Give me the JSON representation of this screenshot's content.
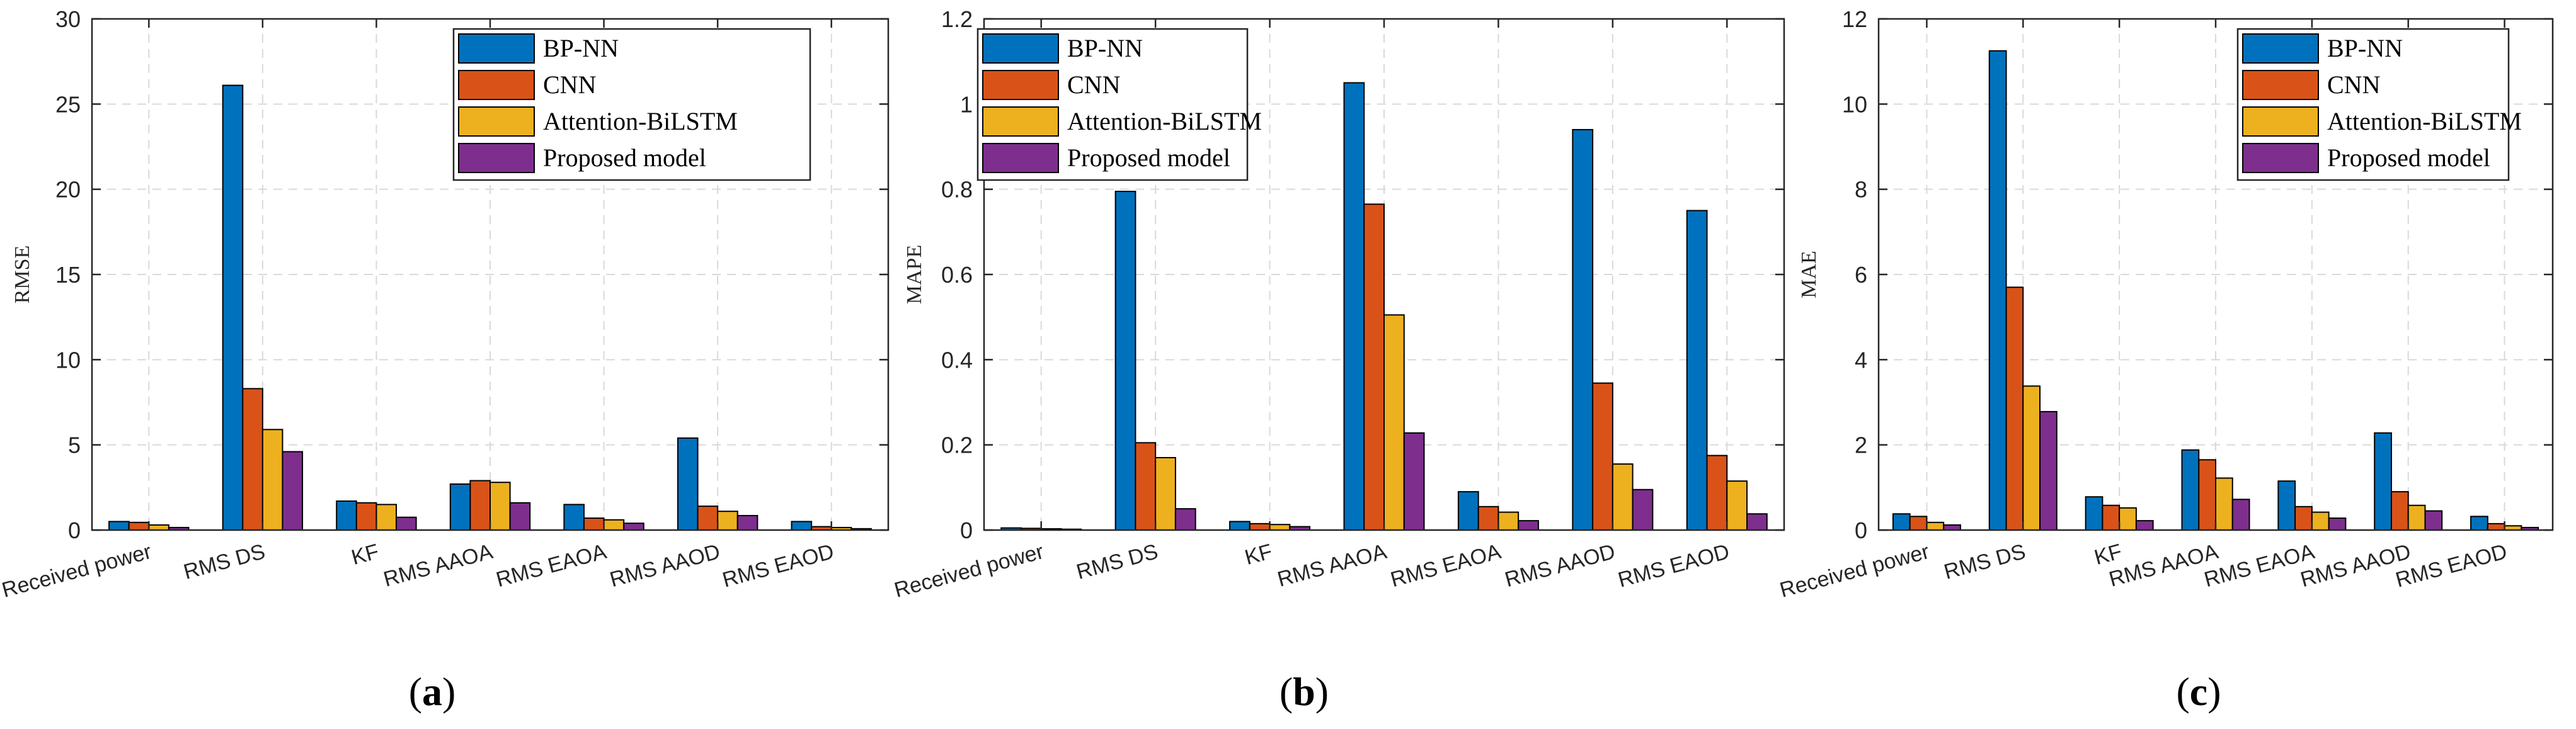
{
  "series_colors": [
    "#0072BD",
    "#D95319",
    "#EDB120",
    "#7E2F8E"
  ],
  "chart_data": [
    {
      "type": "bar",
      "panel_label": "(a)",
      "ylabel": "RMSE",
      "ylim": [
        0,
        30
      ],
      "yticks": [
        0,
        5,
        10,
        15,
        20,
        25,
        30
      ],
      "grid": true,
      "legend_position": "top-right",
      "categories": [
        "Received power",
        "RMS DS",
        "KF",
        "RMS AAOA",
        "RMS EAOA",
        "RMS AAOD",
        "RMS EAOD"
      ],
      "series": [
        {
          "name": "BP-NN",
          "values": [
            0.5,
            26.1,
            1.7,
            2.7,
            1.5,
            5.4,
            0.5
          ]
        },
        {
          "name": "CNN",
          "values": [
            0.45,
            8.3,
            1.6,
            2.9,
            0.7,
            1.4,
            0.2
          ]
        },
        {
          "name": "Attention-BiLSTM",
          "values": [
            0.3,
            5.9,
            1.5,
            2.8,
            0.6,
            1.1,
            0.15
          ]
        },
        {
          "name": "Proposed model",
          "values": [
            0.15,
            4.6,
            0.75,
            1.6,
            0.4,
            0.85,
            0.08
          ]
        }
      ]
    },
    {
      "type": "bar",
      "panel_label": "(b)",
      "ylabel": "MAPE",
      "ylim": [
        0,
        1.2
      ],
      "yticks": [
        0,
        0.2,
        0.4,
        0.6,
        0.8,
        1,
        1.2
      ],
      "grid": true,
      "legend_position": "top-right",
      "categories": [
        "Received power",
        "RMS DS",
        "KF",
        "RMS AAOA",
        "RMS EAOA",
        "RMS AAOD",
        "RMS EAOD"
      ],
      "series": [
        {
          "name": "BP-NN",
          "values": [
            0.005,
            0.795,
            0.02,
            1.05,
            0.09,
            0.94,
            0.75
          ]
        },
        {
          "name": "CNN",
          "values": [
            0.004,
            0.205,
            0.015,
            0.765,
            0.055,
            0.345,
            0.175
          ]
        },
        {
          "name": "Attention-BiLSTM",
          "values": [
            0.003,
            0.17,
            0.013,
            0.505,
            0.042,
            0.155,
            0.115
          ]
        },
        {
          "name": "Proposed model",
          "values": [
            0.002,
            0.05,
            0.008,
            0.228,
            0.022,
            0.095,
            0.038
          ]
        }
      ]
    },
    {
      "type": "bar",
      "panel_label": "(c)",
      "ylabel": "MAE",
      "ylim": [
        0,
        12
      ],
      "yticks": [
        0,
        2,
        4,
        6,
        8,
        10,
        12
      ],
      "grid": true,
      "legend_position": "top-right",
      "categories": [
        "Received power",
        "RMS DS",
        "KF",
        "RMS AAOA",
        "RMS EAOA",
        "RMS AAOD",
        "RMS EAOD"
      ],
      "series": [
        {
          "name": "BP-NN",
          "values": [
            0.38,
            11.25,
            0.78,
            1.88,
            1.15,
            2.28,
            0.32
          ]
        },
        {
          "name": "CNN",
          "values": [
            0.32,
            5.7,
            0.58,
            1.65,
            0.55,
            0.9,
            0.15
          ]
        },
        {
          "name": "Attention-BiLSTM",
          "values": [
            0.18,
            3.38,
            0.52,
            1.22,
            0.42,
            0.58,
            0.1
          ]
        },
        {
          "name": "Proposed model",
          "values": [
            0.12,
            2.78,
            0.22,
            0.72,
            0.28,
            0.45,
            0.06
          ]
        }
      ]
    }
  ]
}
